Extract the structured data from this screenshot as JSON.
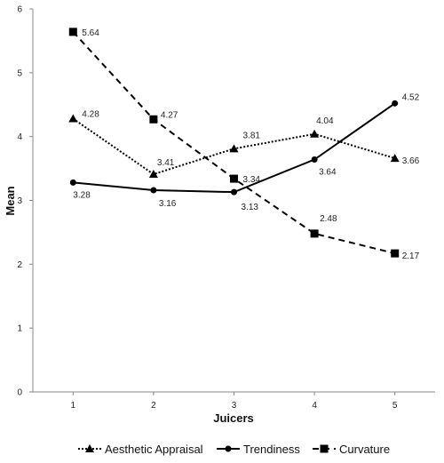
{
  "chart_data": {
    "type": "line",
    "title": "",
    "xlabel": "Juicers",
    "ylabel": "Mean",
    "x": [
      1,
      2,
      3,
      4,
      5
    ],
    "ylim": [
      0,
      6
    ],
    "yticks": [
      0,
      1,
      2,
      3,
      4,
      5,
      6
    ],
    "grid": false,
    "legend_position": "bottom",
    "series": [
      {
        "name": "Aesthetic Appraisal",
        "marker": "triangle",
        "linestyle": "dotted",
        "values": [
          4.28,
          3.41,
          3.81,
          4.04,
          3.66
        ],
        "labels": [
          "4.28",
          "3.41",
          "3.81",
          "4.04",
          "3.66"
        ]
      },
      {
        "name": "Trendiness",
        "marker": "circle",
        "linestyle": "solid",
        "values": [
          3.28,
          3.16,
          3.13,
          3.64,
          4.52
        ],
        "labels": [
          "3.28",
          "3.16",
          "3.13",
          "3.64",
          "4.52"
        ]
      },
      {
        "name": "Curvature",
        "marker": "square",
        "linestyle": "dashed",
        "values": [
          5.64,
          4.27,
          3.34,
          2.48,
          2.17
        ],
        "labels": [
          "5.64",
          "4.27",
          "3.34",
          "2.48",
          "2.17"
        ]
      }
    ]
  }
}
